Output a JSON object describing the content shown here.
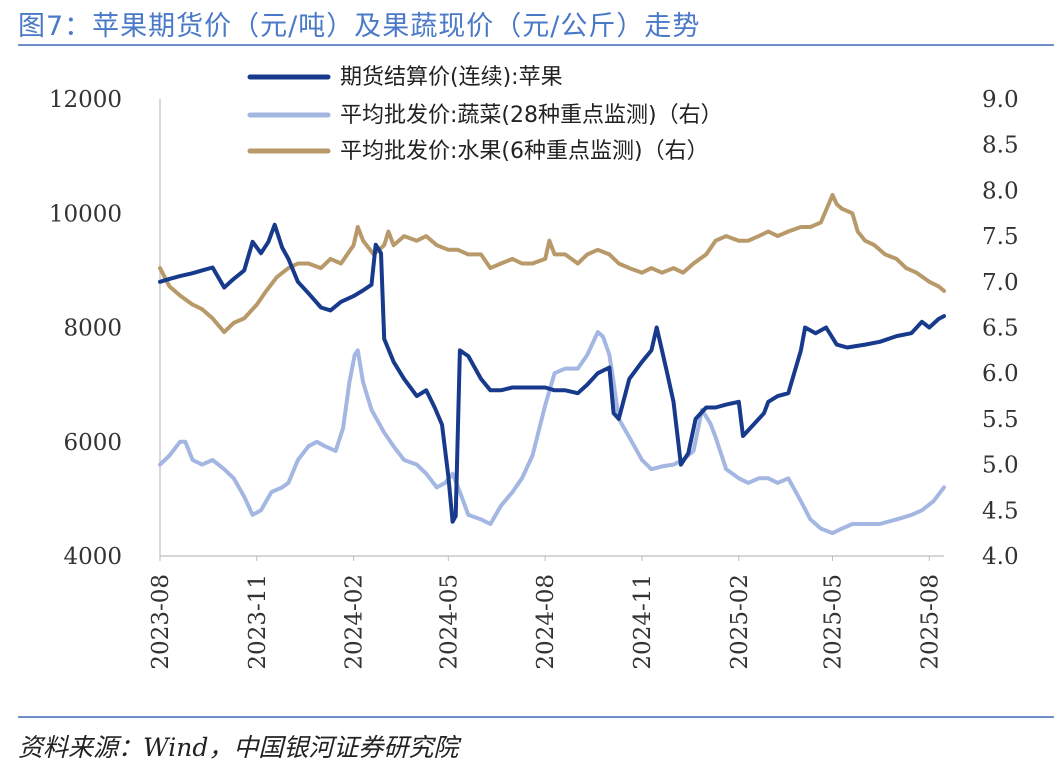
{
  "header": {
    "title": "图7：苹果期货价（元/吨）及果蔬现价（元/公斤）走势"
  },
  "footer": {
    "source": "资料来源：Wind，中国银河证券研究院"
  },
  "chart_data": {
    "type": "line",
    "title": "图7：苹果期货价（元/吨）及果蔬现价（元/公斤）走势",
    "x_ticks": [
      "2023-08",
      "2023-11",
      "2024-02",
      "2024-05",
      "2024-08",
      "2024-11",
      "2025-02",
      "2025-05",
      "2025-08"
    ],
    "y_left": {
      "lim": [
        4000,
        12000
      ],
      "ticks": [
        "4000",
        "6000",
        "8000",
        "10000",
        "12000"
      ]
    },
    "y_right": {
      "lim": [
        4.0,
        9.0
      ],
      "ticks": [
        "4.0",
        "4.5",
        "5.0",
        "5.5",
        "6.0",
        "6.5",
        "7.0",
        "7.5",
        "8.0",
        "8.5",
        "9.0"
      ]
    },
    "legend_position": "top-center",
    "grid": false,
    "series": [
      {
        "name": "期货结算价(连续):苹果",
        "axis": "left",
        "color": "#173a8c",
        "width": 4,
        "points": [
          [
            "2023-08-01",
            8800
          ],
          [
            "2023-08-10",
            8850
          ],
          [
            "2023-08-20",
            8900
          ],
          [
            "2023-09-01",
            8950
          ],
          [
            "2023-09-10",
            9000
          ],
          [
            "2023-09-20",
            9050
          ],
          [
            "2023-10-01",
            8700
          ],
          [
            "2023-10-10",
            8850
          ],
          [
            "2023-10-20",
            9000
          ],
          [
            "2023-10-28",
            9500
          ],
          [
            "2023-11-05",
            9300
          ],
          [
            "2023-11-12",
            9500
          ],
          [
            "2023-11-18",
            9800
          ],
          [
            "2023-11-25",
            9400
          ],
          [
            "2023-12-01",
            9200
          ],
          [
            "2023-12-10",
            8800
          ],
          [
            "2023-12-20",
            8600
          ],
          [
            "2024-01-01",
            8350
          ],
          [
            "2024-01-10",
            8300
          ],
          [
            "2024-01-20",
            8450
          ],
          [
            "2024-02-01",
            8550
          ],
          [
            "2024-02-10",
            8650
          ],
          [
            "2024-02-18",
            8750
          ],
          [
            "2024-02-22",
            9450
          ],
          [
            "2024-02-27",
            9300
          ],
          [
            "2024-03-01",
            7800
          ],
          [
            "2024-03-10",
            7400
          ],
          [
            "2024-03-20",
            7100
          ],
          [
            "2024-04-01",
            6800
          ],
          [
            "2024-04-10",
            6900
          ],
          [
            "2024-04-18",
            6600
          ],
          [
            "2024-04-25",
            6300
          ],
          [
            "2024-05-01",
            5400
          ],
          [
            "2024-05-05",
            4600
          ],
          [
            "2024-05-08",
            4700
          ],
          [
            "2024-05-12",
            7600
          ],
          [
            "2024-05-20",
            7500
          ],
          [
            "2024-06-01",
            7100
          ],
          [
            "2024-06-10",
            6900
          ],
          [
            "2024-06-20",
            6900
          ],
          [
            "2024-07-01",
            6950
          ],
          [
            "2024-07-10",
            6950
          ],
          [
            "2024-07-20",
            6950
          ],
          [
            "2024-08-01",
            6950
          ],
          [
            "2024-08-10",
            6900
          ],
          [
            "2024-08-20",
            6900
          ],
          [
            "2024-09-01",
            6850
          ],
          [
            "2024-09-10",
            7000
          ],
          [
            "2024-09-20",
            7200
          ],
          [
            "2024-10-01",
            7300
          ],
          [
            "2024-10-05",
            6500
          ],
          [
            "2024-10-10",
            6400
          ],
          [
            "2024-10-20",
            7100
          ],
          [
            "2024-11-01",
            7400
          ],
          [
            "2024-11-10",
            7600
          ],
          [
            "2024-11-15",
            8000
          ],
          [
            "2024-11-20",
            7600
          ],
          [
            "2024-11-25",
            7200
          ],
          [
            "2024-12-01",
            6700
          ],
          [
            "2024-12-08",
            5600
          ],
          [
            "2024-12-15",
            5800
          ],
          [
            "2024-12-22",
            6400
          ],
          [
            "2025-01-01",
            6600
          ],
          [
            "2025-01-10",
            6600
          ],
          [
            "2025-01-20",
            6650
          ],
          [
            "2025-02-01",
            6700
          ],
          [
            "2025-02-05",
            6100
          ],
          [
            "2025-02-15",
            6300
          ],
          [
            "2025-02-25",
            6500
          ],
          [
            "2025-03-01",
            6700
          ],
          [
            "2025-03-10",
            6800
          ],
          [
            "2025-03-20",
            6850
          ],
          [
            "2025-04-01",
            7600
          ],
          [
            "2025-04-05",
            8000
          ],
          [
            "2025-04-15",
            7900
          ],
          [
            "2025-04-25",
            8000
          ],
          [
            "2025-05-05",
            7700
          ],
          [
            "2025-05-15",
            7650
          ],
          [
            "2025-06-01",
            7700
          ],
          [
            "2025-06-15",
            7750
          ],
          [
            "2025-07-01",
            7850
          ],
          [
            "2025-07-15",
            7900
          ],
          [
            "2025-07-25",
            8100
          ],
          [
            "2025-08-01",
            8000
          ],
          [
            "2025-08-10",
            8150
          ],
          [
            "2025-08-15",
            8200
          ]
        ]
      },
      {
        "name": "平均批发价:蔬菜(28种重点监测)（右）",
        "axis": "right",
        "color": "#a3b7e2",
        "width": 4,
        "points": [
          [
            "2023-08-01",
            5.0
          ],
          [
            "2023-08-10",
            5.1
          ],
          [
            "2023-08-20",
            5.25
          ],
          [
            "2023-08-25",
            5.25
          ],
          [
            "2023-09-01",
            5.05
          ],
          [
            "2023-09-10",
            5.0
          ],
          [
            "2023-09-20",
            5.05
          ],
          [
            "2023-10-01",
            4.95
          ],
          [
            "2023-10-10",
            4.85
          ],
          [
            "2023-10-20",
            4.65
          ],
          [
            "2023-10-28",
            4.45
          ],
          [
            "2023-11-05",
            4.5
          ],
          [
            "2023-11-15",
            4.7
          ],
          [
            "2023-11-25",
            4.75
          ],
          [
            "2023-12-01",
            4.8
          ],
          [
            "2023-12-10",
            5.05
          ],
          [
            "2023-12-20",
            5.2
          ],
          [
            "2023-12-28",
            5.25
          ],
          [
            "2024-01-05",
            5.2
          ],
          [
            "2024-01-15",
            5.15
          ],
          [
            "2024-01-22",
            5.4
          ],
          [
            "2024-01-28",
            5.9
          ],
          [
            "2024-02-02",
            6.2
          ],
          [
            "2024-02-05",
            6.25
          ],
          [
            "2024-02-10",
            5.9
          ],
          [
            "2024-02-18",
            5.6
          ],
          [
            "2024-03-01",
            5.35
          ],
          [
            "2024-03-10",
            5.2
          ],
          [
            "2024-03-20",
            5.05
          ],
          [
            "2024-04-01",
            5.0
          ],
          [
            "2024-04-10",
            4.9
          ],
          [
            "2024-04-20",
            4.75
          ],
          [
            "2024-04-28",
            4.8
          ],
          [
            "2024-05-05",
            4.9
          ],
          [
            "2024-05-12",
            4.7
          ],
          [
            "2024-05-20",
            4.45
          ],
          [
            "2024-06-01",
            4.4
          ],
          [
            "2024-06-10",
            4.35
          ],
          [
            "2024-06-20",
            4.55
          ],
          [
            "2024-07-01",
            4.7
          ],
          [
            "2024-07-10",
            4.85
          ],
          [
            "2024-07-20",
            5.1
          ],
          [
            "2024-08-01",
            5.65
          ],
          [
            "2024-08-10",
            6.0
          ],
          [
            "2024-08-20",
            6.05
          ],
          [
            "2024-09-01",
            6.05
          ],
          [
            "2024-09-10",
            6.2
          ],
          [
            "2024-09-20",
            6.45
          ],
          [
            "2024-09-25",
            6.4
          ],
          [
            "2024-10-01",
            6.2
          ],
          [
            "2024-10-05",
            5.9
          ],
          [
            "2024-10-10",
            5.5
          ],
          [
            "2024-10-20",
            5.3
          ],
          [
            "2024-11-01",
            5.05
          ],
          [
            "2024-11-10",
            4.95
          ],
          [
            "2024-11-20",
            4.98
          ],
          [
            "2024-12-01",
            5.0
          ],
          [
            "2024-12-10",
            5.05
          ],
          [
            "2024-12-20",
            5.15
          ],
          [
            "2024-12-28",
            5.6
          ],
          [
            "2025-01-05",
            5.45
          ],
          [
            "2025-01-10",
            5.3
          ],
          [
            "2025-01-20",
            4.95
          ],
          [
            "2025-02-01",
            4.85
          ],
          [
            "2025-02-10",
            4.8
          ],
          [
            "2025-02-20",
            4.85
          ],
          [
            "2025-03-01",
            4.85
          ],
          [
            "2025-03-10",
            4.8
          ],
          [
            "2025-03-20",
            4.85
          ],
          [
            "2025-04-01",
            4.6
          ],
          [
            "2025-04-10",
            4.4
          ],
          [
            "2025-04-20",
            4.3
          ],
          [
            "2025-05-01",
            4.25
          ],
          [
            "2025-05-10",
            4.3
          ],
          [
            "2025-05-20",
            4.35
          ],
          [
            "2025-06-01",
            4.35
          ],
          [
            "2025-06-15",
            4.35
          ],
          [
            "2025-07-01",
            4.4
          ],
          [
            "2025-07-15",
            4.45
          ],
          [
            "2025-07-25",
            4.5
          ],
          [
            "2025-08-05",
            4.6
          ],
          [
            "2025-08-15",
            4.75
          ]
        ]
      },
      {
        "name": "平均批发价:水果(6种重点监测)（右）",
        "axis": "right",
        "color": "#b89a6a",
        "width": 4,
        "points": [
          [
            "2023-08-01",
            7.15
          ],
          [
            "2023-08-10",
            6.95
          ],
          [
            "2023-08-20",
            6.85
          ],
          [
            "2023-09-01",
            6.75
          ],
          [
            "2023-09-10",
            6.7
          ],
          [
            "2023-09-20",
            6.6
          ],
          [
            "2023-10-01",
            6.45
          ],
          [
            "2023-10-10",
            6.55
          ],
          [
            "2023-10-20",
            6.6
          ],
          [
            "2023-11-01",
            6.75
          ],
          [
            "2023-11-10",
            6.9
          ],
          [
            "2023-11-20",
            7.05
          ],
          [
            "2023-12-01",
            7.15
          ],
          [
            "2023-12-10",
            7.2
          ],
          [
            "2023-12-20",
            7.2
          ],
          [
            "2024-01-01",
            7.15
          ],
          [
            "2024-01-10",
            7.25
          ],
          [
            "2024-01-20",
            7.2
          ],
          [
            "2024-02-01",
            7.4
          ],
          [
            "2024-02-05",
            7.6
          ],
          [
            "2024-02-10",
            7.45
          ],
          [
            "2024-02-20",
            7.3
          ],
          [
            "2024-03-01",
            7.4
          ],
          [
            "2024-03-05",
            7.55
          ],
          [
            "2024-03-10",
            7.4
          ],
          [
            "2024-03-20",
            7.5
          ],
          [
            "2024-04-01",
            7.45
          ],
          [
            "2024-04-10",
            7.5
          ],
          [
            "2024-04-20",
            7.4
          ],
          [
            "2024-05-01",
            7.35
          ],
          [
            "2024-05-10",
            7.35
          ],
          [
            "2024-05-20",
            7.3
          ],
          [
            "2024-06-01",
            7.3
          ],
          [
            "2024-06-10",
            7.15
          ],
          [
            "2024-06-20",
            7.2
          ],
          [
            "2024-07-01",
            7.25
          ],
          [
            "2024-07-10",
            7.2
          ],
          [
            "2024-07-20",
            7.2
          ],
          [
            "2024-08-01",
            7.25
          ],
          [
            "2024-08-05",
            7.45
          ],
          [
            "2024-08-10",
            7.3
          ],
          [
            "2024-08-20",
            7.3
          ],
          [
            "2024-09-01",
            7.2
          ],
          [
            "2024-09-10",
            7.3
          ],
          [
            "2024-09-20",
            7.35
          ],
          [
            "2024-10-01",
            7.3
          ],
          [
            "2024-10-10",
            7.2
          ],
          [
            "2024-10-20",
            7.15
          ],
          [
            "2024-11-01",
            7.1
          ],
          [
            "2024-11-10",
            7.15
          ],
          [
            "2024-11-20",
            7.1
          ],
          [
            "2024-12-01",
            7.15
          ],
          [
            "2024-12-10",
            7.1
          ],
          [
            "2024-12-20",
            7.2
          ],
          [
            "2025-01-01",
            7.3
          ],
          [
            "2025-01-10",
            7.45
          ],
          [
            "2025-01-20",
            7.5
          ],
          [
            "2025-02-01",
            7.45
          ],
          [
            "2025-02-10",
            7.45
          ],
          [
            "2025-02-20",
            7.5
          ],
          [
            "2025-03-01",
            7.55
          ],
          [
            "2025-03-10",
            7.5
          ],
          [
            "2025-03-20",
            7.55
          ],
          [
            "2025-04-01",
            7.6
          ],
          [
            "2025-04-10",
            7.6
          ],
          [
            "2025-04-20",
            7.65
          ],
          [
            "2025-05-01",
            7.95
          ],
          [
            "2025-05-05",
            7.85
          ],
          [
            "2025-05-10",
            7.8
          ],
          [
            "2025-05-20",
            7.75
          ],
          [
            "2025-05-25",
            7.55
          ],
          [
            "2025-06-01",
            7.45
          ],
          [
            "2025-06-10",
            7.4
          ],
          [
            "2025-06-20",
            7.3
          ],
          [
            "2025-07-01",
            7.25
          ],
          [
            "2025-07-10",
            7.15
          ],
          [
            "2025-07-20",
            7.1
          ],
          [
            "2025-08-01",
            7.0
          ],
          [
            "2025-08-10",
            6.95
          ],
          [
            "2025-08-15",
            6.9
          ]
        ]
      }
    ]
  }
}
